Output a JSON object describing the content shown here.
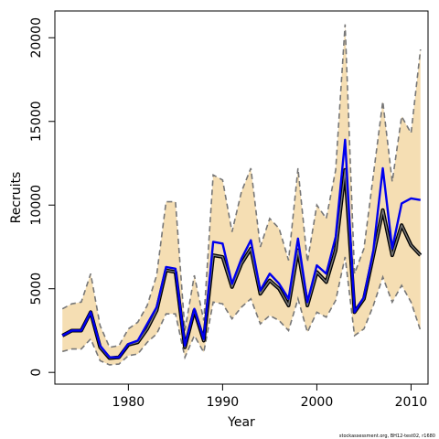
{
  "chart_data": {
    "type": "line",
    "xlabel": "Year",
    "ylabel": "Recruits",
    "xlim": [
      1972.2,
      2011.8
    ],
    "ylim": [
      -700,
      21600
    ],
    "x_ticks": [
      1980,
      1990,
      2000,
      2010
    ],
    "y_ticks": [
      0,
      5000,
      10000,
      15000,
      20000
    ],
    "grid": false,
    "legend": "none",
    "footnote": "stockassessment.org, BH12-test02, r1680",
    "x": [
      1973,
      1974,
      1975,
      1976,
      1977,
      1978,
      1979,
      1980,
      1981,
      1982,
      1983,
      1984,
      1985,
      1986,
      1987,
      1988,
      1989,
      1990,
      1991,
      1992,
      1993,
      1994,
      1995,
      1996,
      1997,
      1998,
      1999,
      2000,
      2001,
      2002,
      2003,
      2004,
      2005,
      2006,
      2007,
      2008,
      2009,
      2010,
      2011
    ],
    "series": [
      {
        "values": [
          2200,
          2500,
          2500,
          3600,
          1500,
          850,
          900,
          1650,
          1800,
          2600,
          3700,
          6100,
          6000,
          1500,
          3700,
          1900,
          7000,
          6900,
          5100,
          6500,
          7400,
          4700,
          5500,
          5000,
          4000,
          7300,
          4000,
          6000,
          5400,
          7300,
          12100,
          3600,
          4400,
          7000,
          9700,
          7000,
          8800,
          7600,
          7000
        ],
        "colors": [
          "#000000",
          "#777777"
        ]
      },
      {
        "values": [
          2200,
          2500,
          2500,
          3600,
          1600,
          900,
          900,
          1700,
          1900,
          2900,
          3900,
          6300,
          6200,
          1600,
          3800,
          2000,
          7800,
          7700,
          5300,
          6800,
          7900,
          4900,
          5900,
          5300,
          4400,
          8000,
          4200,
          6400,
          5900,
          8100,
          13900,
          3600,
          4500,
          7300,
          12200,
          7400,
          10100,
          10400,
          10300
        ],
        "color": "#0000ee"
      }
    ],
    "band": {
      "lower": [
        1250,
        1400,
        1400,
        2000,
        700,
        450,
        500,
        1000,
        1100,
        1800,
        2300,
        3500,
        3500,
        900,
        2200,
        1200,
        4200,
        4100,
        3200,
        3900,
        4400,
        2900,
        3400,
        3100,
        2500,
        4400,
        2400,
        3600,
        3300,
        4300,
        6900,
        2200,
        2600,
        4000,
        5700,
        4200,
        5200,
        4200,
        2500
      ],
      "upper": [
        3800,
        4100,
        4200,
        5900,
        2800,
        1500,
        1600,
        2600,
        3000,
        4000,
        5800,
        10200,
        10200,
        2500,
        5800,
        3100,
        11800,
        11500,
        8400,
        10800,
        12200,
        7500,
        9200,
        8600,
        6700,
        12200,
        6600,
        10000,
        9200,
        12100,
        20800,
        5900,
        7400,
        11800,
        16200,
        11400,
        15300,
        14300,
        19300
      ],
      "fill": "#f5deb3",
      "edge_color": "#777777"
    }
  }
}
